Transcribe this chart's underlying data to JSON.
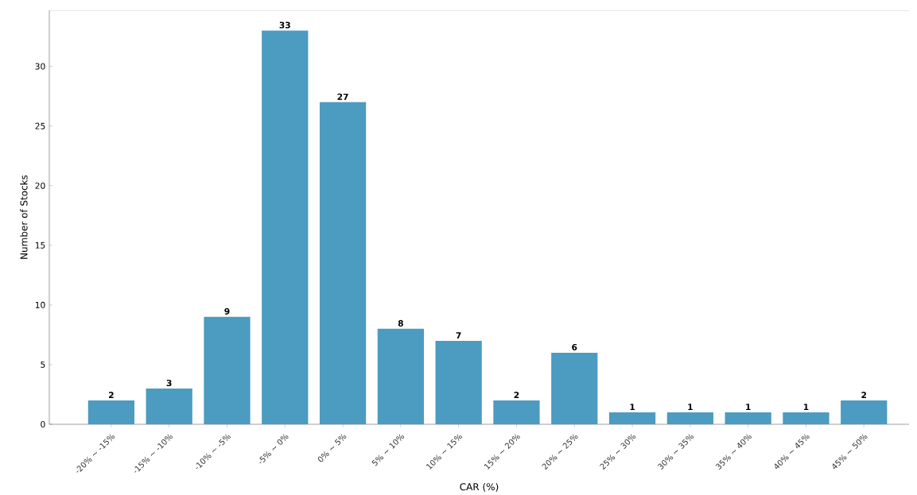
{
  "chart_data": {
    "type": "bar",
    "xlabel": "CAR (%)",
    "ylabel": "Number of Stocks",
    "categories": [
      "-20% ~ -15%",
      "-15% ~ -10%",
      "-10% ~ -5%",
      "-5% ~ 0%",
      "0% ~ 5%",
      "5% ~ 10%",
      "10% ~ 15%",
      "15% ~ 20%",
      "20% ~ 25%",
      "25% ~ 30%",
      "30% ~ 35%",
      "35% ~ 40%",
      "40% ~ 45%",
      "45% ~ 50%"
    ],
    "values": [
      2,
      3,
      9,
      33,
      27,
      8,
      7,
      2,
      6,
      1,
      1,
      1,
      1,
      2
    ],
    "color": "#4c9bc0",
    "ylim": [
      0,
      34.7
    ],
    "yticks": [
      0,
      5,
      10,
      15,
      20,
      25,
      30
    ],
    "data_labels": true
  }
}
